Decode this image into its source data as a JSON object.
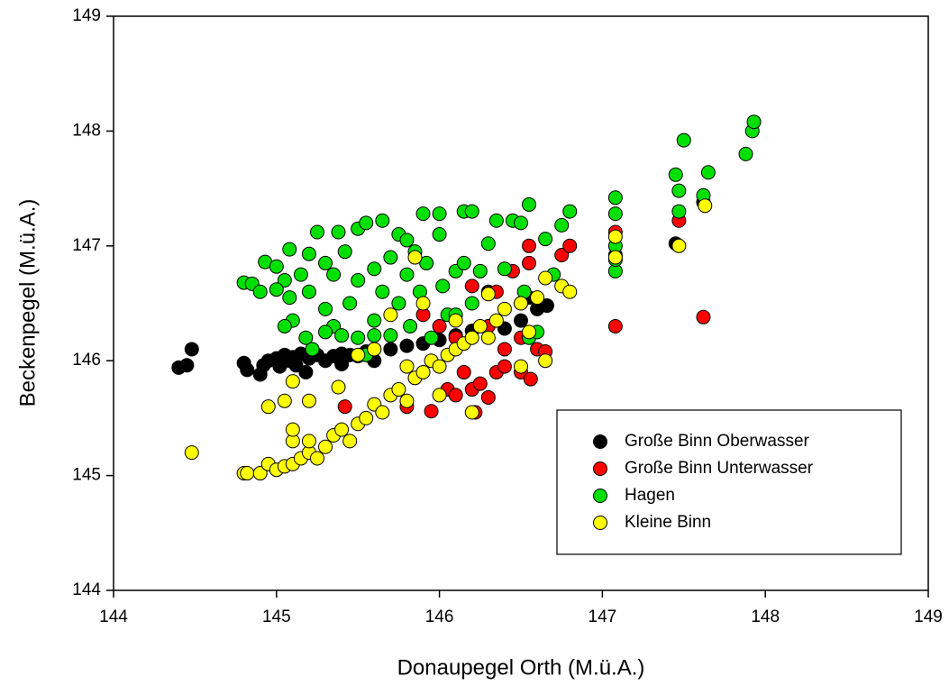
{
  "chart_data": {
    "type": "scatter",
    "x_label": "Donaupegel Orth (M.ü.A.)",
    "y_label": "Beckenpegel (M.ü.A.)",
    "xlim": [
      144,
      149
    ],
    "ylim": [
      144,
      149
    ],
    "xticks": [
      144,
      145,
      146,
      147,
      148,
      149
    ],
    "yticks": [
      144,
      145,
      146,
      147,
      148,
      149
    ],
    "legend": "lower right",
    "series": [
      {
        "name": "Große Binn Oberwasser",
        "color": "#000000",
        "x": [
          144.4,
          144.45,
          144.48,
          144.8,
          144.82,
          144.9,
          144.92,
          144.95,
          145.0,
          145.02,
          145.05,
          145.08,
          145.1,
          145.12,
          145.15,
          145.2,
          145.18,
          145.25,
          145.3,
          145.35,
          145.4,
          145.45,
          145.5,
          145.55,
          145.6,
          145.7,
          145.8,
          145.9,
          146.0,
          146.1,
          146.2,
          146.3,
          146.4,
          146.5,
          146.6,
          146.66,
          146.55,
          147.08,
          147.45,
          147.62,
          145.6,
          145.4
        ],
        "values": [
          145.94,
          145.96,
          146.1,
          145.98,
          145.92,
          145.88,
          145.96,
          146.0,
          146.02,
          145.95,
          146.05,
          146.0,
          146.03,
          145.96,
          146.06,
          146.02,
          145.9,
          146.05,
          146.0,
          146.04,
          146.06,
          146.05,
          146.04,
          146.08,
          146.1,
          146.1,
          146.13,
          146.15,
          146.18,
          146.22,
          146.26,
          146.6,
          146.28,
          146.35,
          146.45,
          146.48,
          146.55,
          146.92,
          147.02,
          147.38,
          146.0,
          145.97
        ]
      },
      {
        "name": "Große Binn Unterwasser",
        "color": "#ff0000",
        "x": [
          145.42,
          145.8,
          145.95,
          146.05,
          146.1,
          146.2,
          146.22,
          146.3,
          146.25,
          146.15,
          146.35,
          146.4,
          146.5,
          146.56,
          146.5,
          146.6,
          146.65,
          146.2,
          146.35,
          146.5,
          146.55,
          146.55,
          146.75,
          146.8,
          147.08,
          147.08,
          147.47,
          147.62,
          146.45,
          146.0,
          145.9,
          146.1,
          146.3,
          146.4
        ],
        "values": [
          145.6,
          145.6,
          145.56,
          145.75,
          145.7,
          145.75,
          145.55,
          145.68,
          145.8,
          145.9,
          145.9,
          146.1,
          145.9,
          145.84,
          146.2,
          146.1,
          146.08,
          146.65,
          146.6,
          146.5,
          146.85,
          147.0,
          146.92,
          147.0,
          146.3,
          147.12,
          147.22,
          146.38,
          146.78,
          146.3,
          146.4,
          146.2,
          146.3,
          145.95
        ]
      },
      {
        "name": "Hagen",
        "color": "#00e000",
        "x": [
          144.8,
          144.85,
          144.9,
          144.93,
          145.0,
          145.05,
          145.0,
          145.08,
          145.1,
          145.05,
          145.08,
          145.15,
          145.18,
          145.2,
          145.22,
          145.2,
          145.25,
          145.3,
          145.3,
          145.35,
          145.35,
          145.38,
          145.42,
          145.45,
          145.5,
          145.5,
          145.5,
          145.55,
          145.55,
          145.6,
          145.6,
          145.65,
          145.65,
          145.7,
          145.7,
          145.75,
          145.75,
          145.8,
          145.8,
          145.82,
          145.85,
          145.88,
          145.9,
          145.92,
          145.95,
          146.0,
          146.0,
          146.02,
          146.05,
          146.1,
          146.15,
          146.15,
          146.2,
          146.2,
          146.25,
          146.3,
          146.35,
          146.4,
          146.45,
          146.5,
          146.52,
          146.55,
          146.55,
          146.6,
          146.65,
          146.7,
          146.75,
          146.8,
          147.08,
          147.08,
          147.08,
          147.08,
          147.08,
          147.45,
          147.47,
          147.47,
          147.5,
          147.62,
          147.65,
          147.88,
          147.92,
          147.93,
          145.4,
          145.6,
          146.1,
          145.3
        ],
        "values": [
          146.68,
          146.67,
          146.6,
          146.86,
          146.82,
          146.7,
          146.62,
          146.55,
          146.35,
          146.3,
          146.97,
          146.75,
          146.2,
          146.6,
          146.1,
          146.93,
          147.12,
          146.85,
          146.45,
          146.3,
          146.75,
          147.12,
          146.95,
          146.5,
          146.2,
          146.7,
          147.15,
          147.2,
          146.05,
          146.8,
          146.35,
          147.22,
          146.6,
          146.9,
          146.22,
          147.1,
          146.5,
          147.05,
          146.75,
          146.3,
          146.95,
          146.6,
          147.28,
          146.85,
          146.2,
          147.28,
          147.1,
          146.65,
          146.4,
          146.78,
          147.3,
          146.85,
          147.3,
          146.5,
          146.78,
          147.02,
          147.22,
          146.8,
          147.22,
          147.2,
          146.6,
          147.36,
          146.2,
          146.25,
          147.06,
          146.75,
          147.18,
          147.3,
          147.42,
          147.28,
          146.78,
          146.88,
          147.0,
          147.62,
          147.48,
          147.3,
          147.92,
          147.44,
          147.64,
          147.8,
          148.0,
          148.08,
          146.22,
          146.22,
          146.4,
          146.25
        ]
      },
      {
        "name": "Kleine Binn",
        "color": "#ffff00",
        "x": [
          144.48,
          144.8,
          144.82,
          144.9,
          144.95,
          145.0,
          145.05,
          145.1,
          145.15,
          145.2,
          145.25,
          145.1,
          145.2,
          145.3,
          145.35,
          145.4,
          145.45,
          145.5,
          145.55,
          145.6,
          145.65,
          145.7,
          145.75,
          145.8,
          145.85,
          145.9,
          145.95,
          146.0,
          146.05,
          146.1,
          146.15,
          146.2,
          146.25,
          146.3,
          146.35,
          146.4,
          146.5,
          146.6,
          146.65,
          146.75,
          146.8,
          146.55,
          146.5,
          146.65,
          146.2,
          146.0,
          145.9,
          145.85,
          145.7,
          145.6,
          145.5,
          145.1,
          145.05,
          144.95,
          145.1,
          145.2,
          145.38,
          146.3,
          147.08,
          147.08,
          147.47,
          147.63,
          146.1,
          145.8
        ],
        "values": [
          145.2,
          145.02,
          145.02,
          145.02,
          145.1,
          145.05,
          145.08,
          145.1,
          145.15,
          145.2,
          145.15,
          145.3,
          145.3,
          145.25,
          145.35,
          145.4,
          145.3,
          145.45,
          145.5,
          145.62,
          145.55,
          145.7,
          145.75,
          145.65,
          145.85,
          145.9,
          146.0,
          145.95,
          146.05,
          146.1,
          146.15,
          146.2,
          146.3,
          146.2,
          146.35,
          146.45,
          146.5,
          146.55,
          146.72,
          146.65,
          146.6,
          146.25,
          145.95,
          146.0,
          145.55,
          145.7,
          146.5,
          146.9,
          146.4,
          146.1,
          146.05,
          145.82,
          145.65,
          145.6,
          145.4,
          145.65,
          145.77,
          146.58,
          147.08,
          146.9,
          147.0,
          147.35,
          146.35,
          145.95
        ]
      }
    ]
  }
}
